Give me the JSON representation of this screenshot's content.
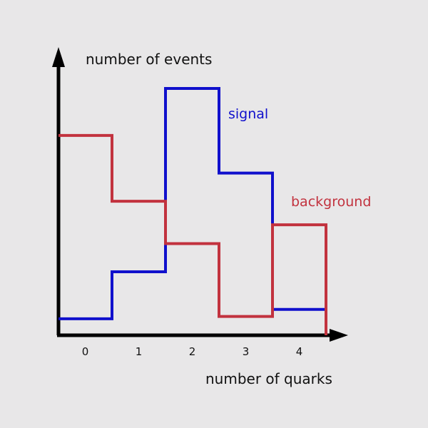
{
  "chart_data": {
    "type": "step",
    "title": "",
    "xlabel": "number of quarks",
    "ylabel": "number of events",
    "categories": [
      "0",
      "1",
      "2",
      "3",
      "4"
    ],
    "xlim": [
      -0.5,
      4.5
    ],
    "ylim": [
      0,
      10
    ],
    "grid": false,
    "series": [
      {
        "name": "signal",
        "color": "#1010cc",
        "values": [
          0.7,
          2.7,
          10.5,
          6.9,
          1.1
        ]
      },
      {
        "name": "background",
        "color": "#c2323e",
        "values": [
          8.5,
          5.7,
          3.9,
          0.8,
          4.7
        ]
      }
    ]
  }
}
